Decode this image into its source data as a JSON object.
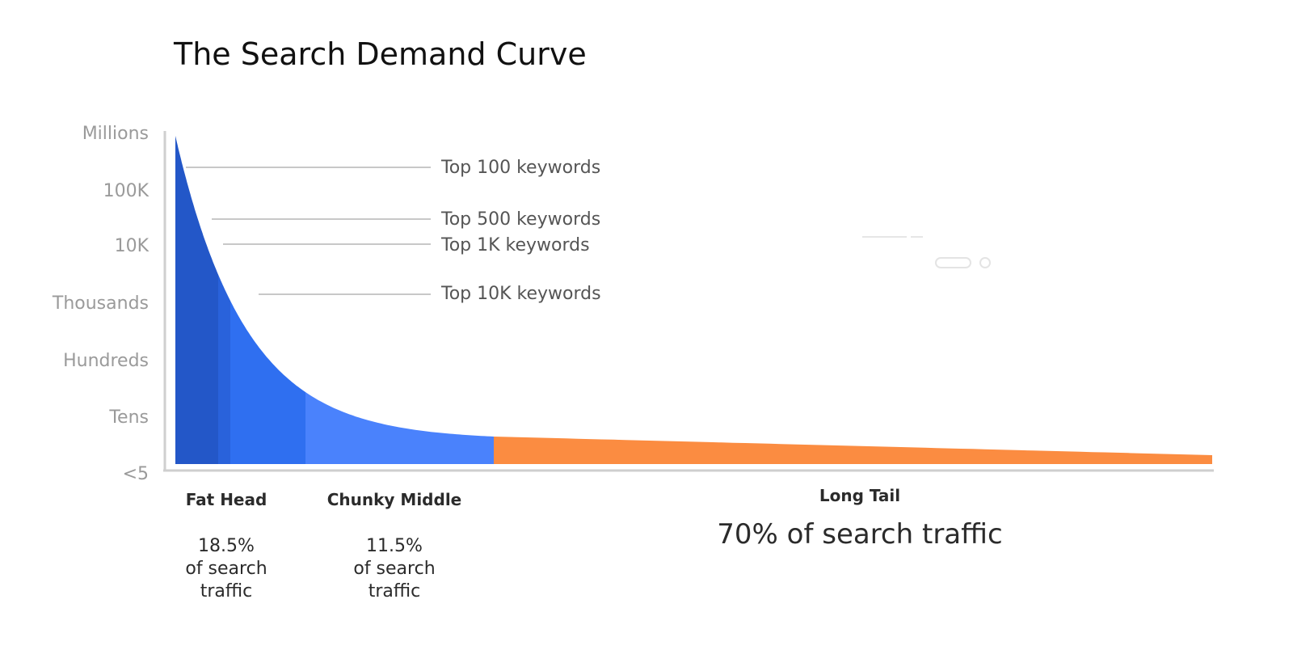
{
  "chart_data": {
    "type": "area",
    "title": "The Search Demand Curve",
    "xlabel": "",
    "ylabel": "",
    "y_scale": "log",
    "y_ticks": [
      "<5",
      "Tens",
      "Hundreds",
      "Thousands",
      "10K",
      "100K",
      "Millions"
    ],
    "grid": false,
    "annotations": [
      {
        "label": "Top 100 keywords",
        "level_value": 316228
      },
      {
        "label": "Top 500 keywords",
        "level_value": 31623
      },
      {
        "label": "Top 1K keywords",
        "level_value": 10000
      },
      {
        "label": "Top 10K keywords",
        "level_value": 1000
      }
    ],
    "segments": [
      {
        "name": "Fat Head",
        "share_percent": 18.5,
        "share_label": "18.5%",
        "share_text": [
          "of search",
          "traffic"
        ],
        "color": "#2357c8",
        "emphasis": false
      },
      {
        "name": "Chunky Middle",
        "share_percent": 11.5,
        "share_label": "11.5%",
        "share_text": [
          "of search",
          "traffic"
        ],
        "color": "#2f6ff0",
        "emphasis": false
      },
      {
        "name": "Long Tail",
        "share_percent": 70,
        "share_label": "70% of search traffic",
        "share_text": [],
        "color": "#fb8c41",
        "emphasis": true
      }
    ],
    "colors": {
      "fat_head": "#2357c8",
      "fat_head_edge": "#2962db",
      "chunky_middle": "#2f6ff0",
      "chunky_middle_light": "#4a82fc",
      "long_tail": "#fb8c41",
      "axis": "#cfcfcf",
      "leader_line": "#c8c8c8"
    }
  }
}
